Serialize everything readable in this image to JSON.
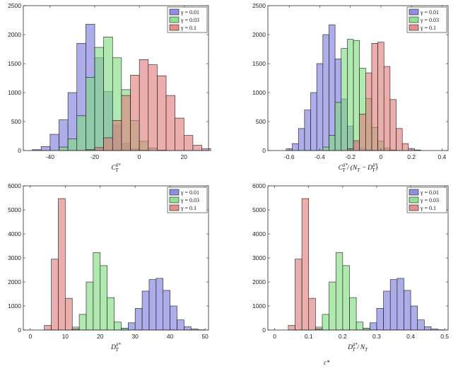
{
  "colors": {
    "blue": "#7b7bdb",
    "green": "#7fdb7f",
    "red": "#e07a7a"
  },
  "caption": "c*",
  "chart_data": [
    {
      "type": "bar",
      "xlabel": "C_T^{δ*}",
      "xlim": [
        -52,
        31
      ],
      "ylim": [
        0,
        2500
      ],
      "xticks": [
        -40,
        -20,
        0,
        20
      ],
      "xtick_labels": [
        "-40",
        "-20",
        "0",
        "20"
      ],
      "yticks": [
        0,
        500,
        1000,
        1500,
        2000,
        2500
      ],
      "legend": {
        "position": "top-right"
      },
      "series": [
        {
          "name": "γ = 0.01",
          "color": "blue",
          "x_start": -48,
          "width": 4,
          "values": [
            15,
            70,
            280,
            530,
            1000,
            1850,
            2180,
            1600,
            1020,
            440,
            120,
            30,
            8
          ]
        },
        {
          "name": "γ = 0.03",
          "color": "green",
          "x_start": -36,
          "width": 4,
          "values": [
            60,
            200,
            600,
            1260,
            1780,
            1960,
            1600,
            1050,
            520,
            160,
            45,
            8
          ]
        },
        {
          "name": "γ = 0.1",
          "color": "red",
          "x_start": -24,
          "width": 4,
          "values": [
            15,
            50,
            220,
            520,
            950,
            1300,
            1570,
            1480,
            1290,
            950,
            560,
            260,
            90,
            30
          ]
        }
      ]
    },
    {
      "type": "bar",
      "xlabel": "C_T^{δ*} / (N_T − D_T^{δ*})",
      "xlim": [
        -0.74,
        0.44
      ],
      "ylim": [
        0,
        2500
      ],
      "xticks": [
        -0.6,
        -0.4,
        -0.2,
        0,
        0.2,
        0.4
      ],
      "xtick_labels": [
        "-0.6",
        "-0.4",
        "-0.2",
        "0",
        "0.2",
        "0.4"
      ],
      "yticks": [
        0,
        500,
        1000,
        1500,
        2000,
        2500
      ],
      "legend": {
        "position": "top-right"
      },
      "series": [
        {
          "name": "γ = 0.01",
          "color": "blue",
          "x_start": -0.62,
          "width": 0.04,
          "values": [
            30,
            120,
            380,
            700,
            1000,
            1500,
            2000,
            2170,
            1580,
            890,
            420,
            140,
            40,
            10
          ]
        },
        {
          "name": "γ = 0.03",
          "color": "green",
          "x_start": -0.38,
          "width": 0.04,
          "values": [
            60,
            260,
            830,
            1760,
            1920,
            1900,
            1420,
            900,
            400,
            160,
            40,
            10
          ]
        },
        {
          "name": "γ = 0.1",
          "color": "red",
          "x_start": -0.22,
          "width": 0.04,
          "values": [
            30,
            170,
            630,
            1340,
            1850,
            1870,
            1450,
            880,
            380,
            120,
            35,
            10
          ]
        }
      ]
    },
    {
      "type": "bar",
      "xlabel": "D_T^{δ*}",
      "xlim": [
        -2,
        51
      ],
      "ylim": [
        0,
        6000
      ],
      "xticks": [
        0,
        10,
        20,
        30,
        40,
        50
      ],
      "xtick_labels": [
        "0",
        "10",
        "20",
        "30",
        "40",
        "50"
      ],
      "yticks": [
        0,
        1000,
        2000,
        3000,
        4000,
        5000,
        6000
      ],
      "legend": {
        "position": "top-right"
      },
      "series": [
        {
          "name": "γ = 0.01",
          "color": "blue",
          "x_start": 26,
          "width": 2,
          "values": [
            80,
            300,
            900,
            1620,
            2100,
            2150,
            1650,
            1000,
            420,
            140,
            40,
            10
          ]
        },
        {
          "name": "γ = 0.03",
          "color": "green",
          "x_start": 12,
          "width": 2,
          "values": [
            120,
            650,
            2000,
            3220,
            2680,
            1350,
            330,
            80
          ]
        },
        {
          "name": "γ = 0.1",
          "color": "red",
          "x_start": 4,
          "width": 2,
          "values": [
            190,
            2950,
            5470,
            1320,
            40
          ]
        }
      ]
    },
    {
      "type": "bar",
      "xlabel": "D_T^{δ*} / N_T",
      "xlim": [
        -0.02,
        0.51
      ],
      "ylim": [
        0,
        6000
      ],
      "xticks": [
        0,
        0.1,
        0.2,
        0.3,
        0.4,
        0.5
      ],
      "xtick_labels": [
        "0",
        "0.1",
        "0.2",
        "0.3",
        "0.4",
        "0.5"
      ],
      "yticks": [
        0,
        1000,
        2000,
        3000,
        4000,
        5000,
        6000
      ],
      "legend": {
        "position": "top-right"
      },
      "series": [
        {
          "name": "γ = 0.01",
          "color": "blue",
          "x_start": 0.26,
          "width": 0.02,
          "values": [
            80,
            300,
            900,
            1620,
            2100,
            2150,
            1650,
            1000,
            420,
            140,
            40,
            10
          ]
        },
        {
          "name": "γ = 0.03",
          "color": "green",
          "x_start": 0.12,
          "width": 0.02,
          "values": [
            120,
            650,
            2000,
            3220,
            2680,
            1350,
            330,
            80
          ]
        },
        {
          "name": "γ = 0.1",
          "color": "red",
          "x_start": 0.04,
          "width": 0.02,
          "values": [
            190,
            2950,
            5470,
            1320,
            40
          ]
        }
      ]
    }
  ]
}
